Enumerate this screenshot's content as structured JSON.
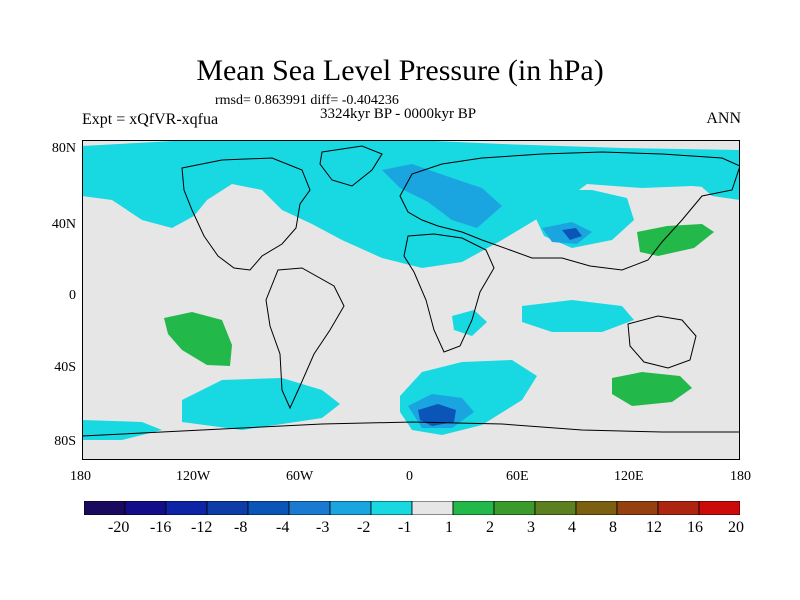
{
  "title": "Mean Sea Level Pressure (in hPa)",
  "stats": "rmsd= 0.863991 diff= -0.404236",
  "subtitle": "3324kyr BP - 0000kyr BP",
  "expt_label": "Expt = xQfVR-xqfua",
  "season": "ANN",
  "lat_labels": [
    "80N",
    "40N",
    "0",
    "40S",
    "80S"
  ],
  "lon_labels": [
    "180",
    "120W",
    "60W",
    "0",
    "60E",
    "120E",
    "180"
  ],
  "colorbar": {
    "labels": [
      "-20",
      "-16",
      "-12",
      "-8",
      "-4",
      "-3",
      "-2",
      "-1",
      "1",
      "2",
      "3",
      "4",
      "8",
      "12",
      "16",
      "20"
    ],
    "colors": [
      "#1a0a5e",
      "#120e8a",
      "#0d24a6",
      "#0e3da8",
      "#0c55b8",
      "#1a79d0",
      "#1ba5e0",
      "#18d8e2",
      "#e6e6e6",
      "#22b84a",
      "#3b9a2c",
      "#5c8020",
      "#7a6010",
      "#944010",
      "#ad2510",
      "#cc0a0a"
    ]
  },
  "colors": {
    "background": "#e6e6e6",
    "coast": "#000000"
  }
}
